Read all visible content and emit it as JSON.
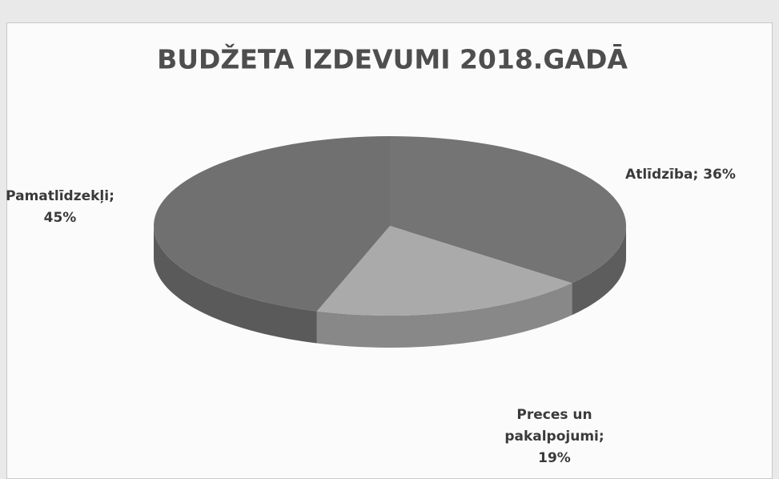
{
  "chart_data": {
    "type": "pie",
    "title": "BUDŽETA IZDEVUMI 2018.GADĀ",
    "categories": [
      "Atlīdzība",
      "Preces un pakalpojumi",
      "Pamatlīdzekļi"
    ],
    "values": [
      36,
      19,
      45
    ],
    "value_labels": [
      "Atlīdzība; 36%",
      "Preces un pakalpojumi; 19%",
      "Pamatlīdzekļi; 45%"
    ],
    "colors": [
      "#747474",
      "#aaaaaa",
      "#707070"
    ]
  }
}
